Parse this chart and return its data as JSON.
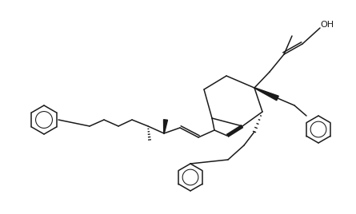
{
  "bg_color": "#ffffff",
  "line_color": "#1a1a1a",
  "line_width": 1.1,
  "figsize": [
    4.45,
    2.68
  ],
  "dpi": 100
}
